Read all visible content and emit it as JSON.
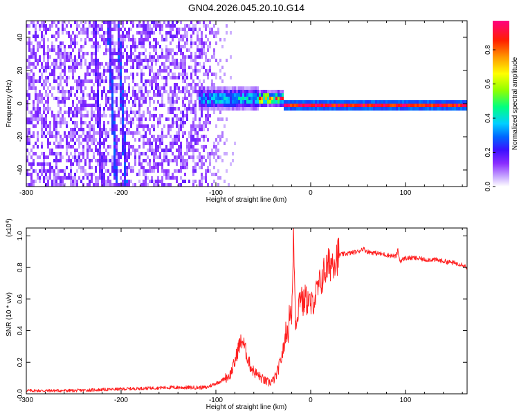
{
  "title": "GN04.2026.045.20.10.G14",
  "colorbar": {
    "label": "Normalized spectral amplitude",
    "ticks": [
      "0.0",
      "0.2",
      "0.4",
      "0.6",
      "0.8"
    ],
    "tick_values": [
      0.0,
      0.2,
      0.4,
      0.6,
      0.8
    ],
    "range": [
      0.0,
      0.97
    ],
    "colormap": [
      "#ffffff",
      "#c8a8ff",
      "#8a2cff",
      "#3c10ff",
      "#0066ff",
      "#00d0ff",
      "#00ff80",
      "#90ff00",
      "#ffff00",
      "#ff9900",
      "#ff2000",
      "#ff0080"
    ]
  },
  "chart_data": [
    {
      "type": "heatmap",
      "title": "GN04.2026.045.20.10.G14",
      "xlabel": "Height of straight line (km)",
      "ylabel": "Frequency (Hz)",
      "xlim": [
        -300,
        165
      ],
      "ylim": [
        -50,
        50
      ],
      "x_ticks": [
        "-300",
        "-200",
        "-100",
        "0",
        "100"
      ],
      "x_tick_values": [
        -300,
        -200,
        -100,
        0,
        100
      ],
      "y_ticks": [
        "40",
        "20",
        "0",
        "-20",
        "-40"
      ],
      "y_tick_values": [
        40,
        20,
        0,
        -20,
        -40
      ],
      "features": [
        {
          "kind": "broadband_noise",
          "x_range": [
            -300,
            -120
          ],
          "freq_range": [
            -50,
            50
          ],
          "amplitude": 0.15
        },
        {
          "kind": "streak",
          "x_start": -214,
          "x_end": -206,
          "freq_range": [
            -50,
            50
          ],
          "amplitude": 0.25
        },
        {
          "kind": "streak",
          "x_start": -204,
          "x_end": -196,
          "freq_range": [
            -50,
            50
          ],
          "amplitude": 0.25
        },
        {
          "kind": "streak",
          "x_start": -229,
          "x_end": -221,
          "freq_range": [
            -50,
            50
          ],
          "amplitude": 0.18
        },
        {
          "kind": "signal_band",
          "x_range": [
            -120,
            -55
          ],
          "center_freq": 4,
          "width": 8,
          "amplitude": 0.4
        },
        {
          "kind": "signal_band",
          "x_range": [
            -55,
            -30
          ],
          "center_freq": 4,
          "width": 5,
          "amplitude": 0.8
        },
        {
          "kind": "signal_band",
          "x_range": [
            -30,
            165
          ],
          "center_freq": 0,
          "width": 3,
          "amplitude": 0.95
        }
      ]
    },
    {
      "type": "line",
      "xlabel": "Height of straight line (km)",
      "ylabel": "SNR (10 * v/v)",
      "multiplier_label": "(x10^4)",
      "multiplier_base": "(x10",
      "multiplier_exp": "4",
      "multiplier_close": ")",
      "xlim": [
        -300,
        165
      ],
      "ylim": [
        0.0,
        1.05
      ],
      "x_ticks": [
        "-300",
        "-200",
        "-100",
        "0",
        "100"
      ],
      "x_tick_values": [
        -300,
        -200,
        -100,
        0,
        100
      ],
      "y_ticks": [
        "0.0",
        "0.2",
        "0.4",
        "0.6",
        "0.8",
        "1.0"
      ],
      "y_tick_values": [
        0.0,
        0.2,
        0.4,
        0.6,
        0.8,
        1.0
      ],
      "series_color": "#ff2020",
      "series": [
        {
          "x": [
            -300,
            -250,
            -200,
            -150,
            -110,
            -95,
            -85,
            -80,
            -76,
            -72,
            -68,
            -64,
            -60,
            -56,
            -52,
            -48,
            -44,
            -40,
            -36,
            -32,
            -28,
            -26,
            -24,
            -22,
            -20,
            -19,
            -18,
            -17,
            -16,
            -14,
            -12,
            -10,
            -8,
            -6,
            -4,
            -2,
            0,
            5,
            10,
            15,
            20,
            25,
            30,
            40,
            50,
            55,
            60,
            70,
            80,
            90,
            92,
            94,
            100,
            110,
            120,
            130,
            140,
            150,
            160,
            165
          ],
          "y": [
            0.02,
            0.02,
            0.03,
            0.04,
            0.04,
            0.08,
            0.12,
            0.2,
            0.3,
            0.34,
            0.26,
            0.18,
            0.14,
            0.12,
            0.1,
            0.08,
            0.07,
            0.08,
            0.12,
            0.2,
            0.3,
            0.42,
            0.35,
            0.55,
            0.5,
            0.7,
            1.05,
            0.72,
            0.45,
            0.5,
            0.6,
            0.65,
            0.55,
            0.62,
            0.58,
            0.6,
            0.55,
            0.62,
            0.7,
            0.78,
            0.82,
            0.86,
            0.88,
            0.89,
            0.9,
            0.92,
            0.9,
            0.89,
            0.88,
            0.87,
            0.91,
            0.84,
            0.86,
            0.86,
            0.85,
            0.85,
            0.84,
            0.83,
            0.82,
            0.8
          ]
        }
      ]
    }
  ]
}
